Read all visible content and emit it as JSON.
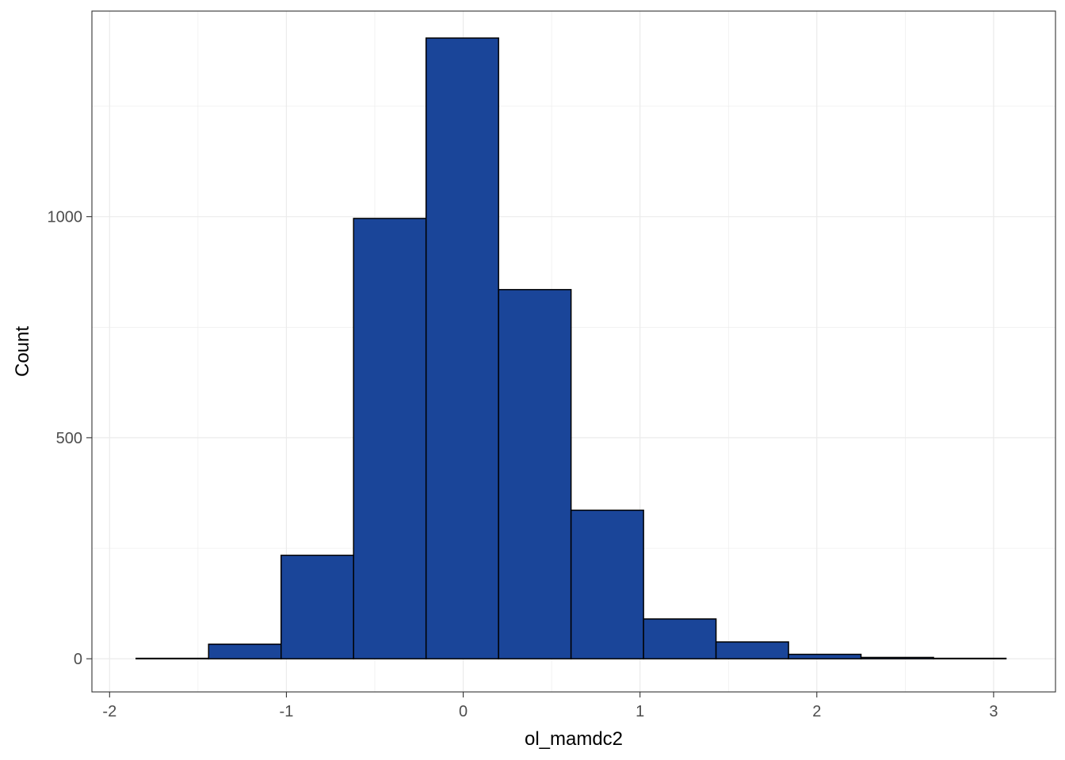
{
  "chart_data": {
    "type": "bar",
    "subtype": "histogram",
    "title": "",
    "xlabel": "ol_mamdc2",
    "ylabel": "Count",
    "xlim": [
      -2.1,
      3.35
    ],
    "ylim": [
      -75,
      1465
    ],
    "x_ticks": [
      -2,
      -1,
      0,
      1,
      2,
      3
    ],
    "y_ticks": [
      0,
      500,
      1000
    ],
    "grid": true,
    "legend": "none",
    "bin_edges": [
      -1.85,
      -1.44,
      -1.03,
      -0.62,
      -0.21,
      0.2,
      0.61,
      1.02,
      1.43,
      1.84,
      2.25,
      2.66,
      3.07
    ],
    "values": [
      1,
      33,
      234,
      996,
      1404,
      835,
      336,
      90,
      38,
      10,
      3,
      1
    ],
    "colors": {
      "fill": "#1a4599",
      "outline": "#000000",
      "grid": "#ebebeb",
      "panel_border": "#333333",
      "tick_text": "#4d4d4d"
    }
  }
}
